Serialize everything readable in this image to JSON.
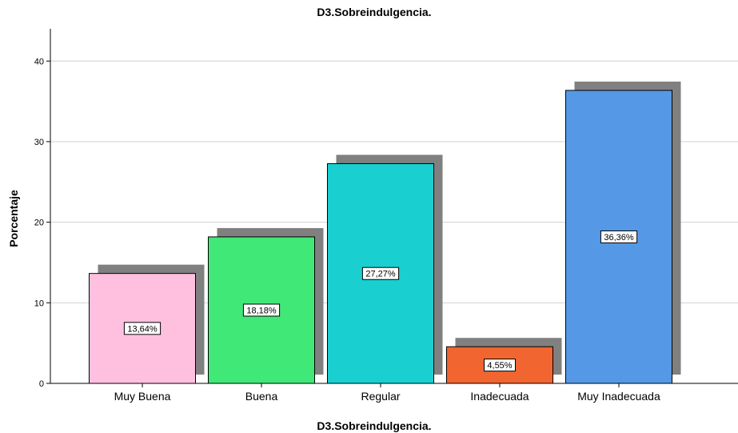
{
  "chart_data": {
    "type": "bar",
    "title": "D3.Sobreindulgencia.",
    "xlabel": "D3.Sobreindulgencia.",
    "ylabel": "Porcentaje",
    "categories": [
      "Muy Buena",
      "Buena",
      "Regular",
      "Inadecuada",
      "Muy Inadecuada"
    ],
    "values": [
      13.64,
      18.18,
      27.27,
      4.55,
      36.36
    ],
    "data_labels": [
      "13,64%",
      "18,18%",
      "27,27%",
      "4,55%",
      "36,36%"
    ],
    "colors": [
      "#FFC0E0",
      "#40E878",
      "#1ACFCF",
      "#F06530",
      "#5599E6"
    ],
    "shadow_color": "#808080",
    "ylim": [
      0,
      44
    ],
    "yticks": [
      0,
      10,
      20,
      30,
      40
    ],
    "ytick_labels": [
      "0",
      "10",
      "20",
      "30",
      "40"
    ],
    "grid": true
  }
}
